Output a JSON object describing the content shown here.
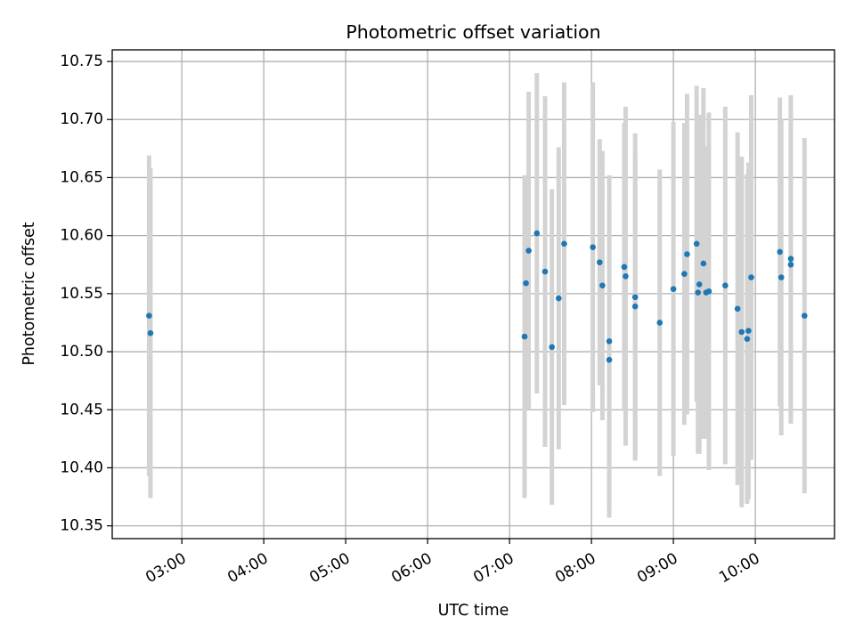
{
  "chart_data": {
    "type": "scatter",
    "title": "Photometric offset variation",
    "xlabel": "UTC time",
    "ylabel": "Photometric offset",
    "x_axis_kind": "time-of-day (UTC)",
    "xlim": [
      "02:09",
      "10:58"
    ],
    "ylim": [
      10.339,
      10.76
    ],
    "grid": true,
    "legend": "none",
    "x_ticks": [
      "03:00",
      "04:00",
      "05:00",
      "06:00",
      "07:00",
      "08:00",
      "09:00",
      "10:00"
    ],
    "y_ticks": [
      "10.35",
      "10.40",
      "10.45",
      "10.50",
      "10.55",
      "10.60",
      "10.65",
      "10.70",
      "10.75"
    ],
    "colors": {
      "point": "#1f77b4",
      "errorbar": "#d3d3d3",
      "grid": "#b0b0b0"
    },
    "points": [
      {
        "t": "02:36",
        "y": 10.531,
        "err": 0.138
      },
      {
        "t": "02:37",
        "y": 10.516,
        "err": 0.142
      },
      {
        "t": "07:11",
        "y": 10.513,
        "err": 0.139
      },
      {
        "t": "07:12",
        "y": 10.559,
        "err": 0.093
      },
      {
        "t": "07:14",
        "y": 10.587,
        "err": 0.137
      },
      {
        "t": "07:20",
        "y": 10.602,
        "err": 0.138
      },
      {
        "t": "07:26",
        "y": 10.569,
        "err": 0.151
      },
      {
        "t": "07:31",
        "y": 10.504,
        "err": 0.136
      },
      {
        "t": "07:36",
        "y": 10.546,
        "err": 0.13
      },
      {
        "t": "07:40",
        "y": 10.593,
        "err": 0.139
      },
      {
        "t": "08:01",
        "y": 10.59,
        "err": 0.142
      },
      {
        "t": "08:06",
        "y": 10.577,
        "err": 0.106
      },
      {
        "t": "08:08",
        "y": 10.557,
        "err": 0.116
      },
      {
        "t": "08:13",
        "y": 10.509,
        "err": 0.143
      },
      {
        "t": "08:13",
        "y": 10.493,
        "err": 0.136
      },
      {
        "t": "08:24",
        "y": 10.573,
        "err": 0.124
      },
      {
        "t": "08:25",
        "y": 10.565,
        "err": 0.146
      },
      {
        "t": "08:32",
        "y": 10.547,
        "err": 0.141
      },
      {
        "t": "08:32",
        "y": 10.539,
        "err": 0.131
      },
      {
        "t": "08:50",
        "y": 10.525,
        "err": 0.132
      },
      {
        "t": "09:00",
        "y": 10.554,
        "err": 0.144
      },
      {
        "t": "09:08",
        "y": 10.567,
        "err": 0.13
      },
      {
        "t": "09:10",
        "y": 10.584,
        "err": 0.138
      },
      {
        "t": "09:17",
        "y": 10.593,
        "err": 0.136
      },
      {
        "t": "09:18",
        "y": 10.551,
        "err": 0.139
      },
      {
        "t": "09:19",
        "y": 10.558,
        "err": 0.146
      },
      {
        "t": "09:22",
        "y": 10.576,
        "err": 0.151
      },
      {
        "t": "09:24",
        "y": 10.551,
        "err": 0.126
      },
      {
        "t": "09:26",
        "y": 10.552,
        "err": 0.154
      },
      {
        "t": "09:38",
        "y": 10.557,
        "err": 0.154
      },
      {
        "t": "09:47",
        "y": 10.537,
        "err": 0.152
      },
      {
        "t": "09:50",
        "y": 10.517,
        "err": 0.151
      },
      {
        "t": "09:54",
        "y": 10.511,
        "err": 0.142
      },
      {
        "t": "09:55",
        "y": 10.518,
        "err": 0.145
      },
      {
        "t": "09:57",
        "y": 10.564,
        "err": 0.157
      },
      {
        "t": "10:18",
        "y": 10.586,
        "err": 0.133
      },
      {
        "t": "10:19",
        "y": 10.564,
        "err": 0.136
      },
      {
        "t": "10:26",
        "y": 10.58,
        "err": 0.141
      },
      {
        "t": "10:26",
        "y": 10.575,
        "err": 0.137
      },
      {
        "t": "10:36",
        "y": 10.531,
        "err": 0.153
      }
    ]
  }
}
